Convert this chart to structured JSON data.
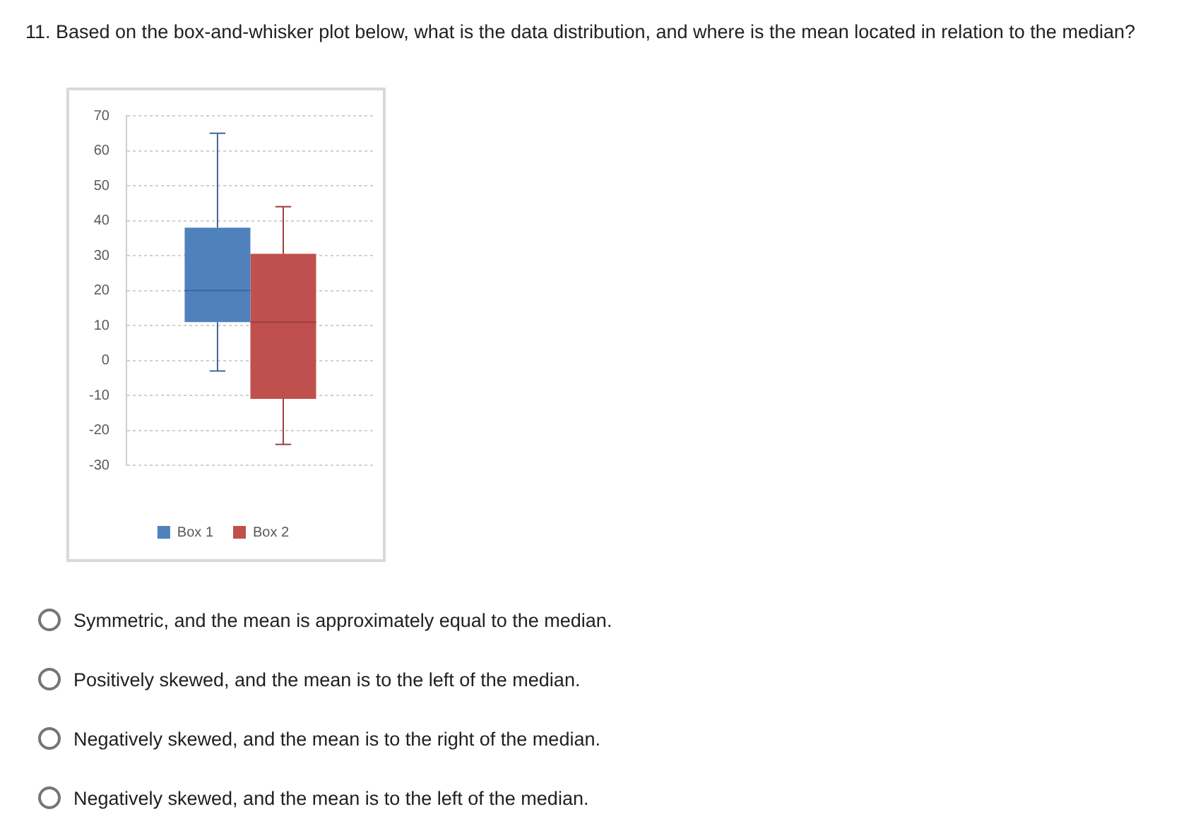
{
  "chart_data": {
    "type": "box",
    "title": "11. Based on the box-and-whisker plot below, what is the data distribution, and where is the mean located in relation to the median?",
    "categories": [
      null
    ],
    "series": [
      {
        "name": "Box 1",
        "color": "#4f81bd",
        "boxes": [
          {
            "low": -3,
            "q1": 11,
            "median": 20,
            "q3": 38,
            "high": 65
          }
        ]
      },
      {
        "name": "Box 2",
        "color": "#c0504d",
        "boxes": [
          {
            "low": -24,
            "q1": -11,
            "median": 11,
            "q3": 30.5,
            "high": 44
          }
        ]
      }
    ],
    "ylim": [
      -30,
      70
    ],
    "yticks": [
      -30,
      -20,
      -10,
      0,
      10,
      20,
      30,
      40,
      50,
      60,
      70
    ],
    "grid": "y",
    "legend": "bottom",
    "annotations": [
      "Symmetric, and the mean is approximately equal to the median.",
      "Positively skewed, and the mean is to the left of the median.",
      "Negatively skewed, and the mean is to the right of the median.",
      "Negatively skewed, and the mean is to the left of the median."
    ]
  }
}
